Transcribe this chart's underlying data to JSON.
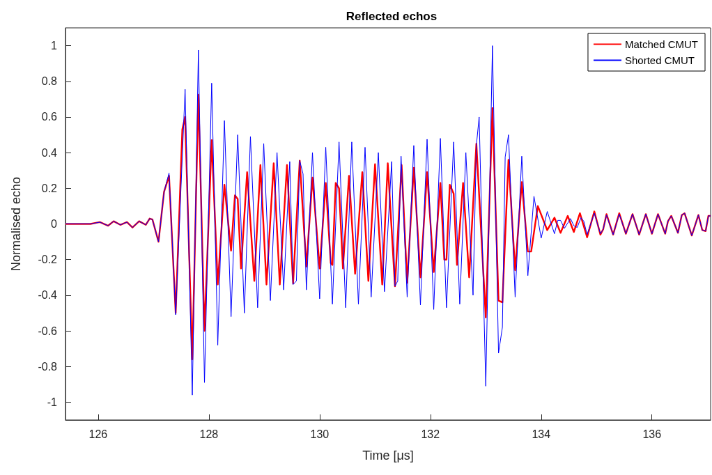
{
  "chart_data": {
    "type": "line",
    "title": "Reflected echos",
    "xlabel": "Time [μs]",
    "ylabel": "Normalised echo",
    "xlim": [
      125.41,
      137.06
    ],
    "xticks": [
      126,
      128,
      130,
      132,
      134,
      136
    ],
    "ylim": [
      -1.1,
      1.1
    ],
    "yticks": [
      -1,
      -0.8,
      -0.6,
      -0.4,
      -0.2,
      0,
      0.2,
      0.4,
      0.6,
      0.8,
      1
    ],
    "grid": false,
    "legend": "top right",
    "marker": "none",
    "line_style": "solid",
    "series": [
      {
        "name": "Matched CMUT",
        "color": "#ff0000",
        "x": [
          125.41,
          125.86,
          126.03,
          126.18,
          126.28,
          126.4,
          126.52,
          126.62,
          126.74,
          126.86,
          126.93,
          126.98,
          127.09,
          127.19,
          127.28,
          127.4,
          127.52,
          127.57,
          127.7,
          127.81,
          127.92,
          128.05,
          128.16,
          128.28,
          128.4,
          128.47,
          128.52,
          128.58,
          128.69,
          128.82,
          128.93,
          129.04,
          129.17,
          129.28,
          129.41,
          129.52,
          129.64,
          129.76,
          129.87,
          130.0,
          130.11,
          130.2,
          130.23,
          130.29,
          130.35,
          130.42,
          130.53,
          130.64,
          130.77,
          130.88,
          131.0,
          131.13,
          131.23,
          131.36,
          131.48,
          131.58,
          131.7,
          131.82,
          131.94,
          132.06,
          132.18,
          132.25,
          132.29,
          132.35,
          132.42,
          132.48,
          132.59,
          132.7,
          132.83,
          133.0,
          133.12,
          133.23,
          133.3,
          133.41,
          133.53,
          133.65,
          133.76,
          133.82,
          133.94,
          134.11,
          134.24,
          134.35,
          134.48,
          134.59,
          134.7,
          134.83,
          134.96,
          135.07,
          135.12,
          135.18,
          135.3,
          135.41,
          135.53,
          135.65,
          135.77,
          135.89,
          136.0,
          136.11,
          136.24,
          136.29,
          136.35,
          136.47,
          136.54,
          136.59,
          136.72,
          136.84,
          136.91,
          136.97,
          137.02,
          137.06
        ],
        "values": [
          0,
          0,
          0.01,
          -0.01,
          0.015,
          -0.005,
          0.01,
          -0.02,
          0.015,
          -0.005,
          0.03,
          0.025,
          -0.1,
          0.18,
          0.27,
          -0.5,
          0.53,
          0.6,
          -0.76,
          0.725,
          -0.6,
          0.47,
          -0.34,
          0.22,
          -0.15,
          0.16,
          0.14,
          -0.25,
          0.29,
          -0.32,
          0.33,
          -0.34,
          0.34,
          -0.34,
          0.33,
          -0.335,
          0.355,
          -0.24,
          0.26,
          -0.25,
          0.23,
          -0.22,
          -0.23,
          0.23,
          0.2,
          -0.25,
          0.27,
          -0.28,
          0.29,
          -0.32,
          0.335,
          -0.34,
          0.34,
          -0.35,
          0.33,
          -0.33,
          0.315,
          -0.3,
          0.29,
          -0.27,
          0.23,
          -0.2,
          -0.2,
          0.22,
          0.17,
          -0.23,
          0.23,
          -0.3,
          0.45,
          -0.525,
          0.65,
          -0.43,
          -0.44,
          0.36,
          -0.26,
          0.235,
          -0.155,
          -0.155,
          0.1,
          -0.035,
          0.035,
          -0.05,
          0.045,
          -0.045,
          0.06,
          -0.075,
          0.07,
          -0.06,
          -0.03,
          0.055,
          -0.06,
          0.06,
          -0.055,
          0.055,
          -0.06,
          0.055,
          -0.055,
          0.055,
          -0.055,
          0.015,
          0.045,
          -0.05,
          0.05,
          0.06,
          -0.065,
          0.05,
          -0.035,
          -0.04,
          0.045,
          0.045
        ]
      },
      {
        "name": "Shorted CMUT",
        "color": "#0000ff",
        "x": [
          125.41,
          125.86,
          126.03,
          126.18,
          126.28,
          126.4,
          126.52,
          126.62,
          126.74,
          126.86,
          126.93,
          126.98,
          127.09,
          127.19,
          127.28,
          127.4,
          127.57,
          127.7,
          127.81,
          127.92,
          128.05,
          128.16,
          128.28,
          128.4,
          128.52,
          128.64,
          128.75,
          128.88,
          128.99,
          129.11,
          129.23,
          129.35,
          129.46,
          129.52,
          129.58,
          129.64,
          129.7,
          129.76,
          129.87,
          130.0,
          130.11,
          130.23,
          130.35,
          130.47,
          130.58,
          130.7,
          130.82,
          130.93,
          131.06,
          131.17,
          131.3,
          131.36,
          131.41,
          131.47,
          131.58,
          131.7,
          131.82,
          131.94,
          132.06,
          132.18,
          132.29,
          132.42,
          132.53,
          132.64,
          132.77,
          132.83,
          132.88,
          133.0,
          133.12,
          133.23,
          133.3,
          133.35,
          133.41,
          133.53,
          133.65,
          133.76,
          133.87,
          134.0,
          134.11,
          134.24,
          134.3,
          134.35,
          134.42,
          134.53,
          134.59,
          134.65,
          134.72,
          134.77,
          134.83,
          134.96,
          135.07,
          135.12,
          135.18,
          135.3,
          135.41,
          135.53,
          135.65,
          135.77,
          135.89,
          136.0,
          136.11,
          136.24,
          136.29,
          136.35,
          136.47,
          136.54,
          136.59,
          136.72,
          136.84,
          136.91,
          136.97,
          137.02,
          137.06
        ],
        "values": [
          0,
          0,
          0.01,
          -0.01,
          0.015,
          -0.005,
          0.01,
          -0.02,
          0.015,
          -0.005,
          0.03,
          0.025,
          -0.1,
          0.18,
          0.285,
          -0.51,
          0.755,
          -0.96,
          0.975,
          -0.89,
          0.79,
          -0.68,
          0.58,
          -0.52,
          0.5,
          -0.5,
          0.49,
          -0.47,
          0.45,
          -0.43,
          0.4,
          -0.37,
          0.35,
          -0.34,
          -0.32,
          0.355,
          0.28,
          -0.37,
          0.4,
          -0.42,
          0.43,
          -0.45,
          0.46,
          -0.47,
          0.46,
          -0.45,
          0.43,
          -0.41,
          0.4,
          -0.38,
          0.35,
          -0.35,
          -0.32,
          0.38,
          -0.41,
          0.44,
          -0.455,
          0.475,
          -0.48,
          0.48,
          -0.47,
          0.46,
          -0.45,
          0.4,
          -0.4,
          0.44,
          0.6,
          -0.91,
          1,
          -0.725,
          -0.58,
          0.375,
          0.5,
          -0.41,
          0.38,
          -0.29,
          0.155,
          -0.08,
          0.07,
          -0.055,
          0.02,
          0.02,
          -0.025,
          0.03,
          -0.01,
          -0.02,
          0.035,
          0.015,
          -0.06,
          0.06,
          -0.055,
          -0.03,
          0.05,
          -0.06,
          0.055,
          -0.055,
          0.055,
          -0.06,
          0.055,
          -0.055,
          0.055,
          -0.055,
          0.015,
          0.045,
          -0.05,
          0.05,
          0.06,
          -0.065,
          0.05,
          -0.035,
          -0.04,
          0.045,
          0.045
        ]
      }
    ]
  }
}
